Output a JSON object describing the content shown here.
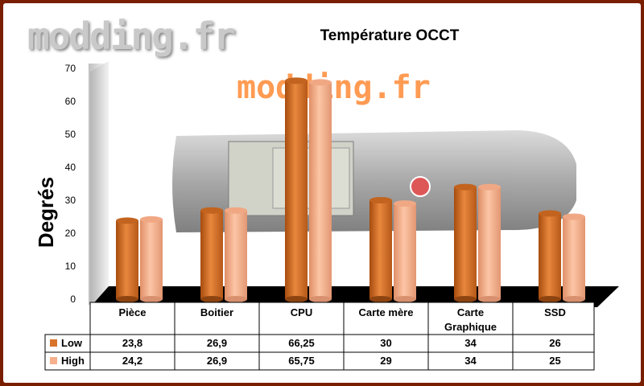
{
  "watermark": "modding.fr",
  "colors": {
    "low": "#d9742b",
    "high": "#f6b08c",
    "frame": "#7a1e00"
  },
  "chart_data": {
    "type": "bar",
    "title": "Température OCCT",
    "ylabel": "Degrés",
    "xlabel": "",
    "ylim": [
      0,
      70
    ],
    "yticks": [
      0,
      10,
      20,
      30,
      40,
      50,
      60,
      70
    ],
    "categories": [
      "Pièce",
      "Boitier",
      "CPU",
      "Carte mère",
      "Carte Graphique",
      "SSD"
    ],
    "series": [
      {
        "name": "Low",
        "values": [
          23.8,
          26.9,
          66.25,
          30,
          34,
          26
        ],
        "labels": [
          "23,8",
          "26,9",
          "66,25",
          "30",
          "34",
          "26"
        ]
      },
      {
        "name": "High",
        "values": [
          24.2,
          26.9,
          65.75,
          29,
          34,
          25
        ],
        "labels": [
          "24,2",
          "26,9",
          "65,75",
          "29",
          "34",
          "25"
        ]
      }
    ],
    "data_table": true,
    "grid": false
  }
}
